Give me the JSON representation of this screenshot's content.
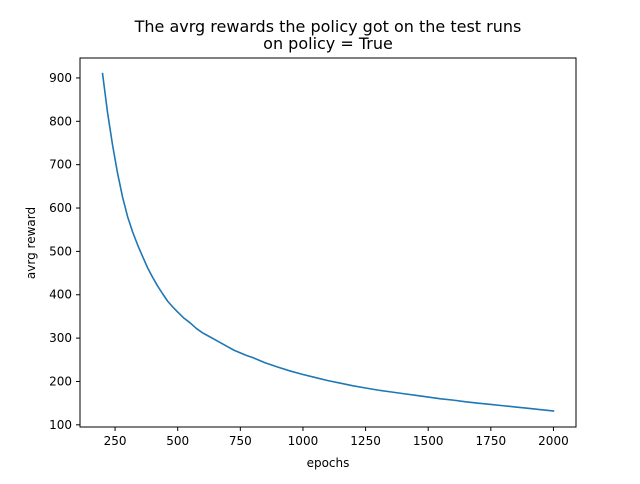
{
  "chart_data": {
    "type": "line",
    "title": "The avrg rewards the policy got on the test runs",
    "subtitle": "on policy = True",
    "xlabel": "epochs",
    "ylabel": "avrg reward",
    "xlim": [
      110,
      2090
    ],
    "ylim": [
      95,
      946
    ],
    "xticks": [
      250,
      500,
      750,
      1000,
      1250,
      1500,
      1750,
      2000
    ],
    "yticks": [
      100,
      200,
      300,
      400,
      500,
      600,
      700,
      800,
      900
    ],
    "grid": false,
    "legend": "none",
    "series": [
      {
        "color": "#1f77b4",
        "x": [
          200,
          220,
          240,
          260,
          280,
          300,
          320,
          340,
          360,
          380,
          400,
          420,
          440,
          460,
          480,
          500,
          525,
          550,
          575,
          600,
          625,
          650,
          675,
          700,
          725,
          750,
          775,
          800,
          850,
          900,
          950,
          1000,
          1050,
          1100,
          1150,
          1200,
          1250,
          1300,
          1350,
          1400,
          1450,
          1500,
          1550,
          1600,
          1650,
          1700,
          1750,
          1800,
          1850,
          1900,
          1950,
          2000
        ],
        "values": [
          910,
          820,
          745,
          680,
          625,
          580,
          545,
          515,
          488,
          462,
          440,
          420,
          402,
          385,
          372,
          360,
          346,
          335,
          322,
          312,
          304,
          296,
          288,
          280,
          272,
          266,
          260,
          255,
          243,
          233,
          224,
          216,
          209,
          202,
          196,
          190,
          185,
          180,
          176,
          172,
          168,
          164,
          160,
          157,
          153,
          150,
          147,
          144,
          141,
          138,
          135,
          132
        ]
      }
    ]
  }
}
